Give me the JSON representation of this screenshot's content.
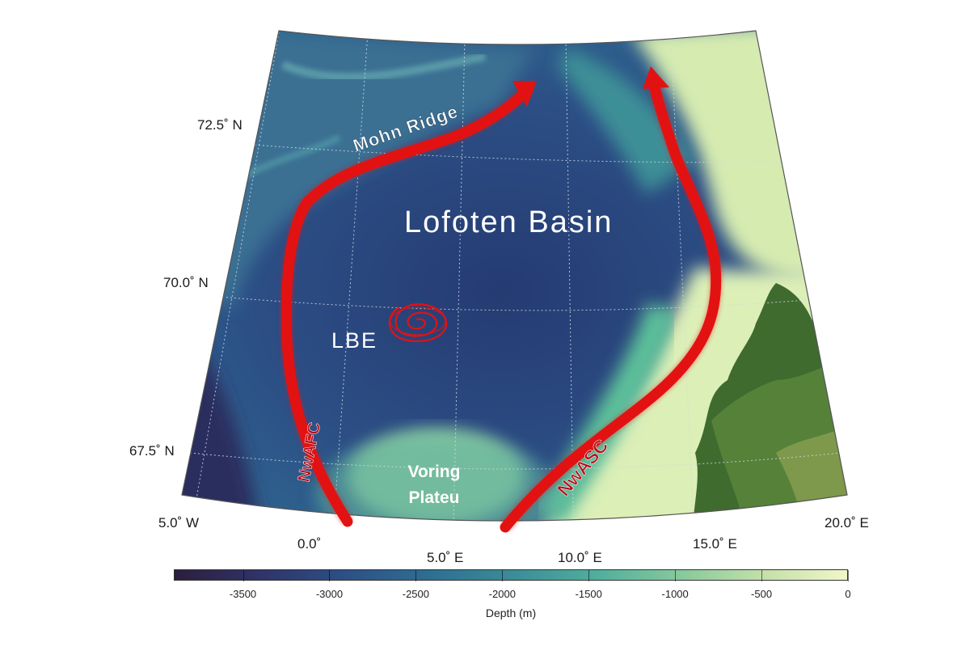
{
  "map": {
    "features": {
      "basin": "Lofoten Basin",
      "ridge": "Mohn Ridge",
      "eddy": "LBE",
      "plateau_line1": "Voring",
      "plateau_line2": "Plateu",
      "current_west": "NwAFC",
      "current_east": "NwASC"
    },
    "latitude_labels": [
      "72.5˚ N",
      "70.0˚ N",
      "67.5˚ N"
    ],
    "longitude_labels": [
      "5.0˚ W",
      "0.0˚",
      "5.0˚ E",
      "10.0˚ E",
      "15.0˚ E",
      "20.0˚ E"
    ],
    "colors": {
      "deep": "#23305c",
      "mid": "#2a6b8c",
      "shallow": "#5bbf9a",
      "shelf": "#e6f3b8",
      "land": "#3f6b2f",
      "current": "#e31212"
    }
  },
  "colorbar": {
    "title": "Depth (m)",
    "ticks": [
      "-3500",
      "-3000",
      "-2500",
      "-2000",
      "-1500",
      "-1000",
      "-500",
      "0"
    ],
    "range": [
      -3900,
      0
    ],
    "colormap": [
      "#2c1e3d",
      "#2f3368",
      "#2d4f86",
      "#2e6d91",
      "#3a8c98",
      "#4fae9c",
      "#86c89c",
      "#c3e0a8",
      "#f1f6c8"
    ]
  }
}
